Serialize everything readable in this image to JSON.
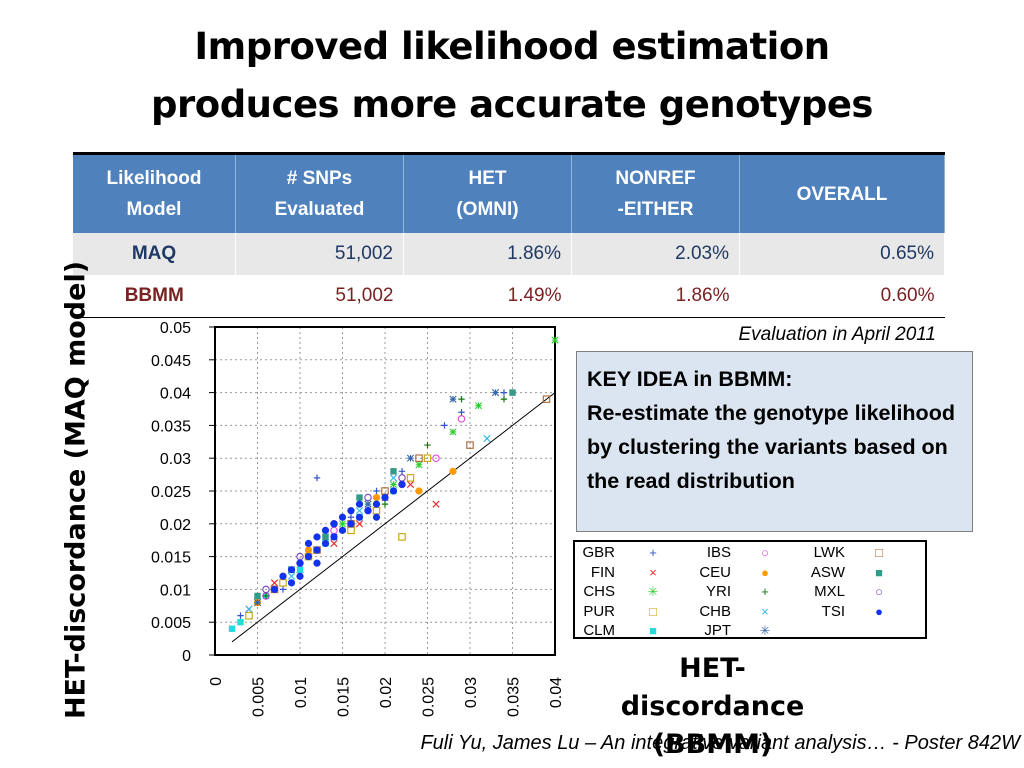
{
  "title": {
    "line1": "Improved likelihood estimation",
    "line2": "produces more accurate genotypes"
  },
  "table": {
    "headers": [
      [
        "Likelihood",
        "Model"
      ],
      [
        "# SNPs",
        "Evaluated"
      ],
      [
        "HET",
        "(OMNI)"
      ],
      [
        "NONREF",
        "-EITHER"
      ],
      [
        "OVERALL",
        ""
      ]
    ],
    "rows": [
      {
        "model": "MAQ",
        "snps": "51,002",
        "het": "1.86%",
        "nonref": "2.03%",
        "overall": "0.65%"
      },
      {
        "model": "BBMM",
        "snps": "51,002",
        "het": "1.49%",
        "nonref": "1.86%",
        "overall": "0.60%"
      }
    ]
  },
  "evaluation_note": "Evaluation in April 2011",
  "key_idea": {
    "heading": "KEY IDEA in BBMM:",
    "text": "Re-estimate the genotype likelihood by clustering the variants based on the read distribution"
  },
  "footer": "Fuli Yu, James Lu – An integrative variant analysis… - Poster 842W",
  "colors": {
    "header_blue": "#4f81bd",
    "maq_text": "#1f3864",
    "bbmm_text": "#7a2222",
    "box_fill": "#dbe5f1"
  },
  "chart_data": {
    "type": "scatter",
    "xlabel": "HET-discordance (BBMM)",
    "ylabel": "HET-discordance (MAQ model)",
    "xlim": [
      0,
      0.04
    ],
    "ylim": [
      0,
      0.05
    ],
    "x_ticks": [
      "0",
      "0.005",
      "0.01",
      "0.015",
      "0.02",
      "0.025",
      "0.03",
      "0.035",
      "0.04"
    ],
    "y_ticks": [
      "0",
      "0.005",
      "0.01",
      "0.015",
      "0.02",
      "0.025",
      "0.03",
      "0.035",
      "0.04",
      "0.045",
      "0.05"
    ],
    "grid": true,
    "reference_line": "y = x",
    "legend_position": "right",
    "series": [
      {
        "name": "GBR",
        "marker": "+",
        "color": "#3355cc",
        "points": [
          [
            0.003,
            0.006
          ],
          [
            0.008,
            0.01
          ],
          [
            0.011,
            0.015
          ],
          [
            0.013,
            0.018
          ],
          [
            0.016,
            0.021
          ],
          [
            0.019,
            0.025
          ],
          [
            0.022,
            0.028
          ],
          [
            0.012,
            0.027
          ],
          [
            0.027,
            0.035
          ],
          [
            0.029,
            0.037
          ],
          [
            0.034,
            0.04
          ]
        ]
      },
      {
        "name": "FIN",
        "marker": "x",
        "color": "#e53030",
        "points": [
          [
            0.004,
            0.007
          ],
          [
            0.007,
            0.011
          ],
          [
            0.01,
            0.013
          ],
          [
            0.014,
            0.017
          ],
          [
            0.017,
            0.02
          ],
          [
            0.02,
            0.024
          ],
          [
            0.023,
            0.026
          ],
          [
            0.026,
            0.023
          ]
        ]
      },
      {
        "name": "CHS",
        "marker": "*",
        "color": "#33cc33",
        "points": [
          [
            0.005,
            0.008
          ],
          [
            0.009,
            0.013
          ],
          [
            0.012,
            0.016
          ],
          [
            0.015,
            0.02
          ],
          [
            0.018,
            0.023
          ],
          [
            0.021,
            0.026
          ],
          [
            0.024,
            0.029
          ],
          [
            0.028,
            0.034
          ],
          [
            0.031,
            0.038
          ],
          [
            0.04,
            0.048
          ]
        ]
      },
      {
        "name": "PUR",
        "marker": "sq-open",
        "color": "#c8a000",
        "points": [
          [
            0.004,
            0.006
          ],
          [
            0.008,
            0.011
          ],
          [
            0.011,
            0.015
          ],
          [
            0.016,
            0.019
          ],
          [
            0.019,
            0.022
          ],
          [
            0.023,
            0.027
          ],
          [
            0.025,
            0.03
          ],
          [
            0.022,
            0.018
          ]
        ]
      },
      {
        "name": "CLM",
        "marker": "sq-fill",
        "color": "#22dddd",
        "points": [
          [
            0.002,
            0.004
          ],
          [
            0.003,
            0.005
          ],
          [
            0.006,
            0.009
          ],
          [
            0.01,
            0.013
          ],
          [
            0.013,
            0.017
          ],
          [
            0.017,
            0.021
          ],
          [
            0.021,
            0.025
          ]
        ]
      },
      {
        "name": "IBS",
        "marker": "o",
        "color": "#dd44dd",
        "points": [
          [
            0.006,
            0.009
          ],
          [
            0.01,
            0.014
          ],
          [
            0.014,
            0.019
          ],
          [
            0.018,
            0.022
          ],
          [
            0.022,
            0.026
          ],
          [
            0.026,
            0.03
          ],
          [
            0.029,
            0.036
          ]
        ]
      },
      {
        "name": "CEU",
        "marker": "dot",
        "color": "#ff9900",
        "points": [
          [
            0.005,
            0.008
          ],
          [
            0.008,
            0.012
          ],
          [
            0.011,
            0.016
          ],
          [
            0.013,
            0.019
          ],
          [
            0.016,
            0.022
          ],
          [
            0.019,
            0.024
          ],
          [
            0.024,
            0.025
          ],
          [
            0.028,
            0.028
          ]
        ]
      },
      {
        "name": "YRI",
        "marker": "+",
        "color": "#117711",
        "points": [
          [
            0.006,
            0.009
          ],
          [
            0.01,
            0.014
          ],
          [
            0.015,
            0.019
          ],
          [
            0.02,
            0.023
          ],
          [
            0.025,
            0.032
          ],
          [
            0.029,
            0.039
          ],
          [
            0.034,
            0.039
          ]
        ]
      },
      {
        "name": "CHB",
        "marker": "x",
        "color": "#33bbee",
        "points": [
          [
            0.004,
            0.007
          ],
          [
            0.009,
            0.012
          ],
          [
            0.013,
            0.018
          ],
          [
            0.017,
            0.022
          ],
          [
            0.021,
            0.027
          ],
          [
            0.032,
            0.033
          ]
        ]
      },
      {
        "name": "JPT",
        "marker": "*",
        "color": "#3366aa",
        "points": [
          [
            0.005,
            0.008
          ],
          [
            0.009,
            0.013
          ],
          [
            0.014,
            0.018
          ],
          [
            0.018,
            0.023
          ],
          [
            0.023,
            0.03
          ],
          [
            0.028,
            0.039
          ],
          [
            0.033,
            0.04
          ]
        ]
      },
      {
        "name": "LWK",
        "marker": "sq-open",
        "color": "#aa6633",
        "points": [
          [
            0.007,
            0.01
          ],
          [
            0.012,
            0.016
          ],
          [
            0.016,
            0.02
          ],
          [
            0.02,
            0.025
          ],
          [
            0.024,
            0.03
          ],
          [
            0.03,
            0.032
          ],
          [
            0.039,
            0.039
          ]
        ]
      },
      {
        "name": "ASW",
        "marker": "sq-fill",
        "color": "#339988",
        "points": [
          [
            0.005,
            0.009
          ],
          [
            0.009,
            0.013
          ],
          [
            0.013,
            0.018
          ],
          [
            0.017,
            0.024
          ],
          [
            0.021,
            0.028
          ],
          [
            0.035,
            0.04
          ]
        ]
      },
      {
        "name": "MXL",
        "marker": "o",
        "color": "#7744bb",
        "points": [
          [
            0.006,
            0.01
          ],
          [
            0.01,
            0.015
          ],
          [
            0.014,
            0.02
          ],
          [
            0.018,
            0.024
          ],
          [
            0.022,
            0.027
          ]
        ]
      },
      {
        "name": "TSI",
        "marker": "dot",
        "color": "#1133ee",
        "points": [
          [
            0.008,
            0.012
          ],
          [
            0.009,
            0.013
          ],
          [
            0.01,
            0.014
          ],
          [
            0.011,
            0.015
          ],
          [
            0.011,
            0.017
          ],
          [
            0.012,
            0.016
          ],
          [
            0.012,
            0.018
          ],
          [
            0.013,
            0.017
          ],
          [
            0.013,
            0.019
          ],
          [
            0.014,
            0.018
          ],
          [
            0.014,
            0.02
          ],
          [
            0.015,
            0.019
          ],
          [
            0.015,
            0.021
          ],
          [
            0.016,
            0.02
          ],
          [
            0.016,
            0.022
          ],
          [
            0.017,
            0.021
          ],
          [
            0.017,
            0.023
          ],
          [
            0.018,
            0.022
          ],
          [
            0.019,
            0.023
          ],
          [
            0.02,
            0.024
          ],
          [
            0.021,
            0.025
          ],
          [
            0.009,
            0.011
          ],
          [
            0.01,
            0.012
          ],
          [
            0.012,
            0.014
          ],
          [
            0.007,
            0.01
          ],
          [
            0.019,
            0.021
          ],
          [
            0.022,
            0.026
          ]
        ]
      }
    ]
  }
}
